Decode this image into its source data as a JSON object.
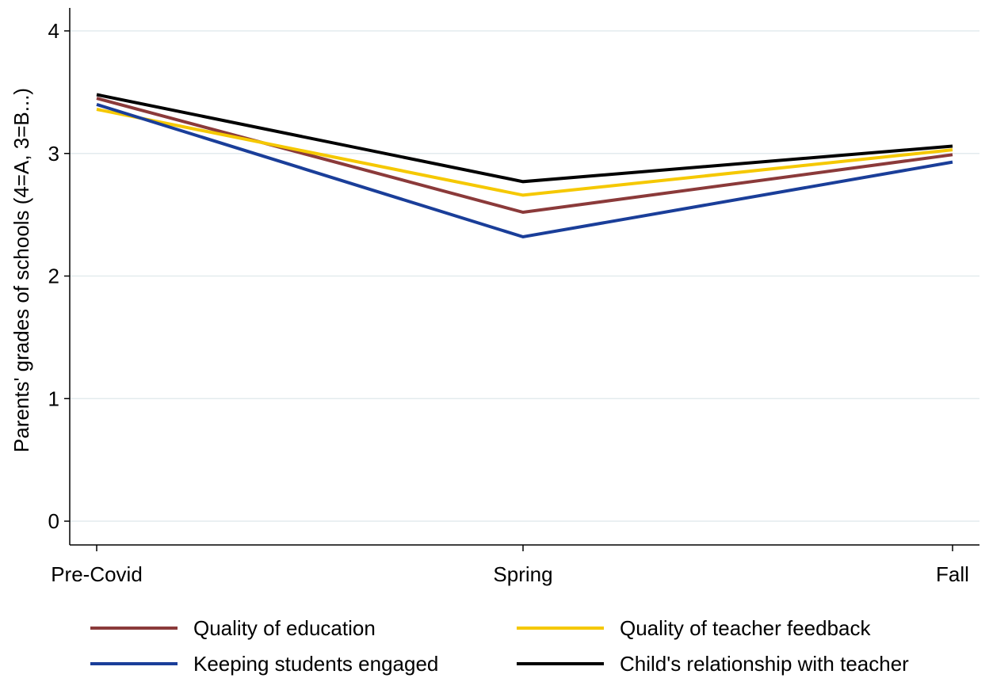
{
  "chart_data": {
    "type": "line",
    "title": "",
    "xlabel": "",
    "ylabel": "Parents' grades of schools (4=A, 3=B...)",
    "ylim": [
      -0.2,
      4.2
    ],
    "yticks": [
      0,
      1,
      2,
      3,
      4
    ],
    "grid": true,
    "legend_position": "bottom",
    "categories": [
      "Pre-Covid",
      "Spring",
      "Fall"
    ],
    "series": [
      {
        "name": "Quality of education",
        "color": "#8b3a3a",
        "values": [
          3.45,
          2.52,
          2.99
        ]
      },
      {
        "name": "Quality of teacher feedback",
        "color": "#f5c800",
        "values": [
          3.36,
          2.66,
          3.03
        ]
      },
      {
        "name": "Keeping students engaged",
        "color": "#1a3e99",
        "values": [
          3.4,
          2.32,
          2.93
        ]
      },
      {
        "name": "Child's relationship with teacher",
        "color": "#000000",
        "values": [
          3.48,
          2.77,
          3.06
        ]
      }
    ]
  }
}
